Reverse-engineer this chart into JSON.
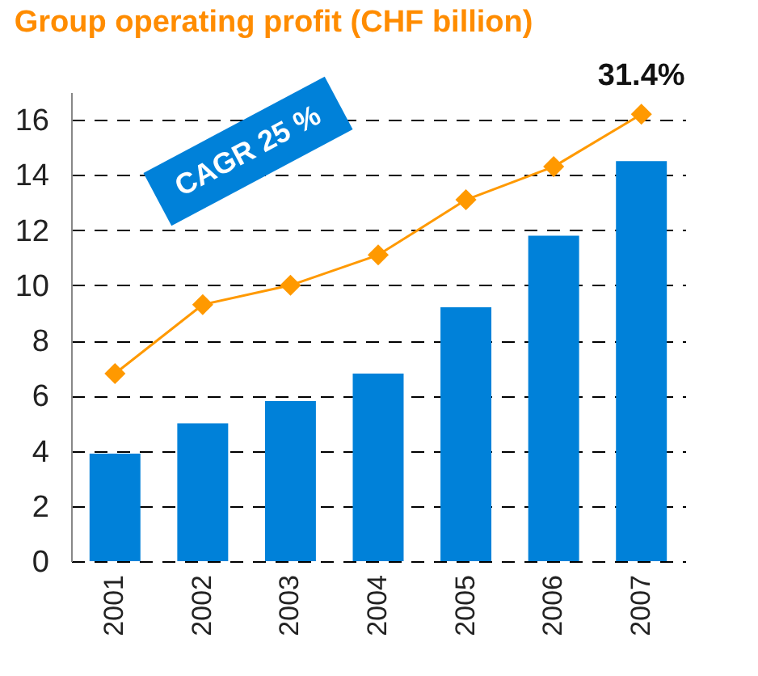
{
  "chart_data": {
    "type": "bar",
    "title": "Group operating profit (CHF billion)",
    "categories": [
      "2001",
      "2002",
      "2003",
      "2004",
      "2005",
      "2006",
      "2007"
    ],
    "series": [
      {
        "type": "bar",
        "color": "#0081d9",
        "values": [
          3.9,
          5.0,
          5.8,
          6.8,
          9.2,
          11.8,
          14.5
        ]
      },
      {
        "type": "line",
        "color": "#ff9900",
        "marker": "diamond",
        "values": [
          6.8,
          9.3,
          10.0,
          11.1,
          13.1,
          14.3,
          16.2
        ]
      }
    ],
    "ylim": [
      0,
      17
    ],
    "yticks": [
      0,
      2,
      4,
      6,
      8,
      10,
      12,
      14,
      16
    ],
    "grid": "y",
    "annotations": [
      "CAGR 25 %",
      {
        "text": "31.4%",
        "x": "2007",
        "y": 16.2
      }
    ]
  }
}
